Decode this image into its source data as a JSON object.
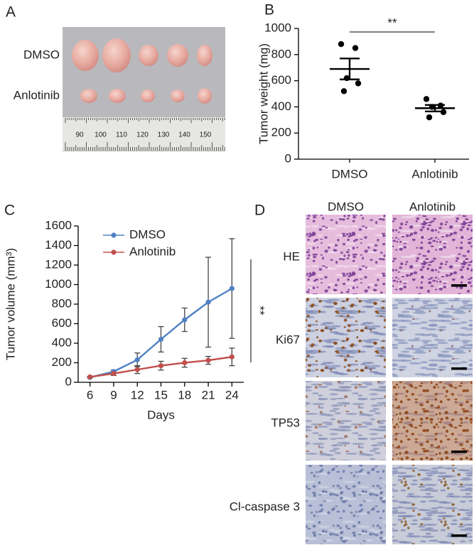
{
  "panel_labels": [
    "A",
    "B",
    "C",
    "D"
  ],
  "photo": {
    "rows": [
      "DMSO",
      "Anlotinib"
    ],
    "ruler_labels": [
      "90",
      "100",
      "110",
      "120",
      "130",
      "140",
      "150"
    ]
  },
  "chart_data": [
    {
      "type": "dot",
      "ylabel": "Tumor weight (mg)",
      "categories": [
        "DMSO",
        "Anlotinib"
      ],
      "points": [
        [
          880,
          850,
          620,
          580,
          520
        ],
        [
          460,
          410,
          400,
          360,
          320
        ]
      ],
      "mean": [
        690,
        390
      ],
      "sem": [
        80,
        25
      ],
      "color": "#000000",
      "ylim": [
        0,
        1000
      ],
      "yticks": [
        0,
        200,
        400,
        600,
        800,
        1000
      ],
      "annotation": "**"
    },
    {
      "type": "line",
      "xlabel": "Days",
      "ylabel": "Tumor volume (mm³)",
      "x": [
        6,
        9,
        12,
        15,
        18,
        21,
        24
      ],
      "series": [
        {
          "name": "DMSO",
          "color": "#4f81c4",
          "values": [
            50,
            110,
            230,
            440,
            640,
            820,
            960
          ],
          "errors": [
            5,
            15,
            70,
            130,
            120,
            460,
            510
          ]
        },
        {
          "name": "Anlotinib",
          "color": "#c0504d",
          "values": [
            55,
            90,
            130,
            170,
            200,
            225,
            260
          ],
          "errors": [
            5,
            20,
            40,
            45,
            45,
            40,
            90
          ]
        }
      ],
      "xlim": [
        4.5,
        25.5
      ],
      "xticks": [
        6,
        9,
        12,
        15,
        18,
        21,
        24
      ],
      "ylim": [
        0,
        1600
      ],
      "yticks": [
        0,
        200,
        400,
        600,
        800,
        1000,
        1200,
        1400,
        1600
      ],
      "legend": "upper left",
      "annotation": "**"
    }
  ],
  "histology": {
    "columns": [
      "DMSO",
      "Anlotinib"
    ],
    "rows": [
      "HE",
      "Ki67",
      "TP53",
      "Cl-caspase 3"
    ]
  }
}
